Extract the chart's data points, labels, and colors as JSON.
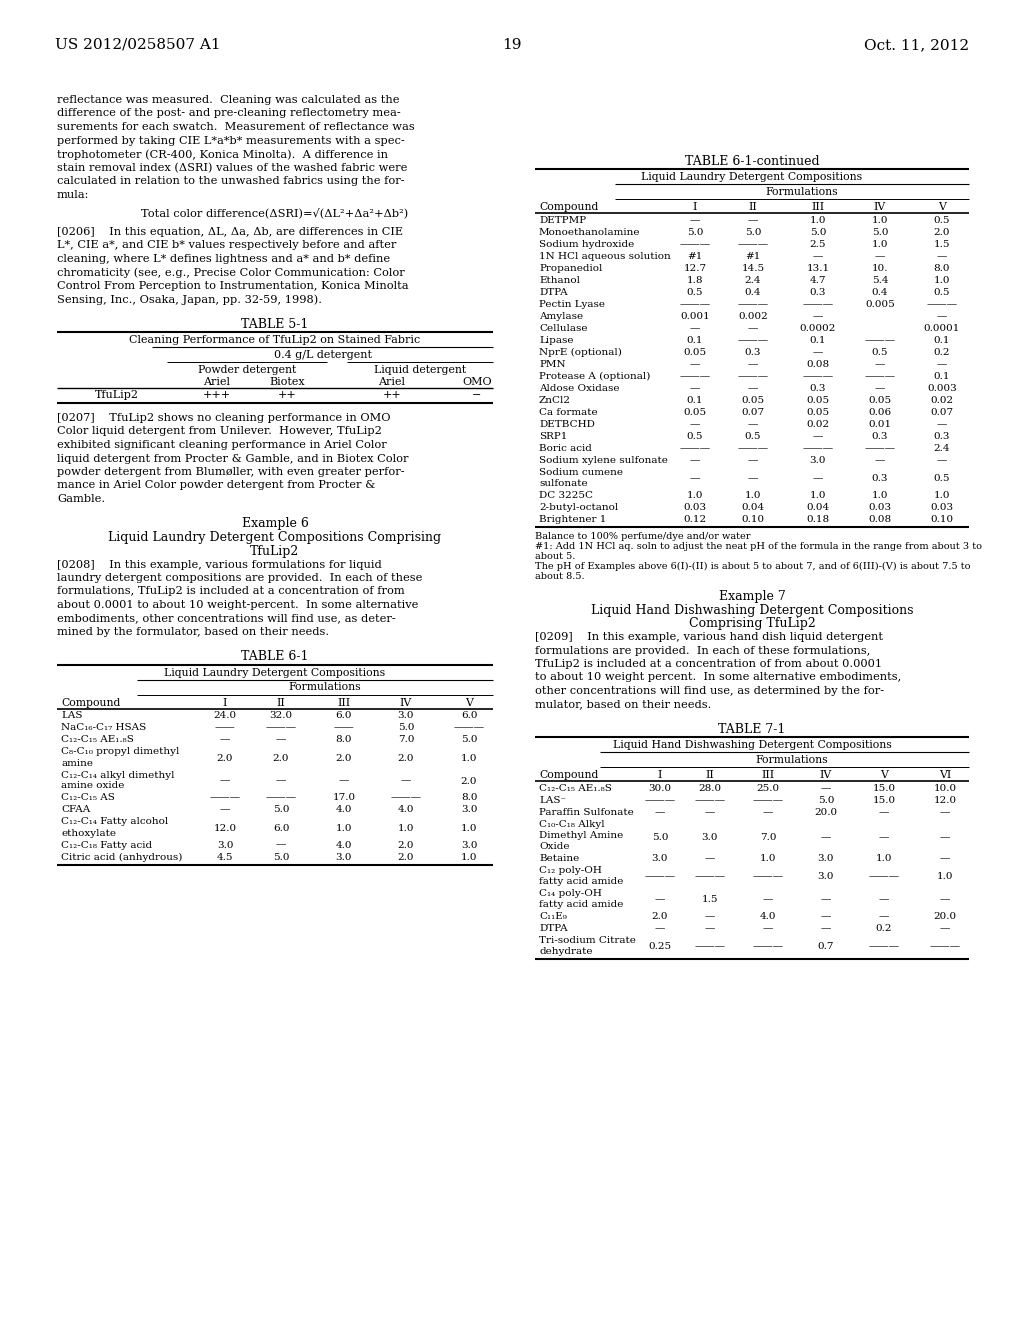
{
  "page_number": "19",
  "patent_number": "US 2012/0258507 A1",
  "patent_date": "Oct. 11, 2012",
  "background_color": "#ffffff",
  "text_color": "#000000",
  "table51_row": [
    "TfuLip2",
    "+++",
    "++",
    "++",
    "−"
  ],
  "table61_cols": [
    "Compound",
    "I",
    "II",
    "III",
    "IV",
    "V"
  ],
  "table61_rows": [
    [
      "LAS",
      "24.0",
      "32.0",
      "6.0",
      "3.0",
      "6.0"
    ],
    [
      "NaC₁₆-C₁₇ HSAS",
      "——",
      "———",
      "——",
      "5.0",
      "———"
    ],
    [
      "C₁₂-C₁₅ AE₁.₈S",
      "—",
      "—",
      "8.0",
      "7.0",
      "5.0"
    ],
    [
      "C₈-C₁₀ propyl dimethyl|amine",
      "2.0",
      "2.0",
      "2.0",
      "2.0",
      "1.0"
    ],
    [
      "C₁₂-C₁₄ alkyl dimethyl|amine oxide",
      "—",
      "—",
      "—",
      "—",
      "2.0"
    ],
    [
      "C₁₂-C₁₅ AS",
      "———",
      "———",
      "17.0",
      "———",
      "8.0"
    ],
    [
      "CFAA",
      "—",
      "5.0",
      "4.0",
      "4.0",
      "3.0"
    ],
    [
      "C₁₂-C₁₄ Fatty alcohol|ethoxylate",
      "12.0",
      "6.0",
      "1.0",
      "1.0",
      "1.0"
    ],
    [
      "C₁₂-C₁₈ Fatty acid",
      "3.0",
      "—",
      "4.0",
      "2.0",
      "3.0"
    ],
    [
      "Citric acid (anhydrous)",
      "4.5",
      "5.0",
      "3.0",
      "2.0",
      "1.0"
    ]
  ],
  "table61cont_cols": [
    "Compound",
    "I",
    "II",
    "III",
    "IV",
    "V"
  ],
  "table61cont_rows": [
    [
      "DETPMP",
      "—",
      "—",
      "1.0",
      "1.0",
      "0.5"
    ],
    [
      "Monoethanolamine",
      "5.0",
      "5.0",
      "5.0",
      "5.0",
      "2.0"
    ],
    [
      "Sodium hydroxide",
      "———",
      "———",
      "2.5",
      "1.0",
      "1.5"
    ],
    [
      "1N HCl aqueous solution",
      "#1",
      "#1",
      "—",
      "—",
      "—"
    ],
    [
      "Propanediol",
      "12.7",
      "14.5",
      "13.1",
      "10.",
      "8.0"
    ],
    [
      "Ethanol",
      "1.8",
      "2.4",
      "4.7",
      "5.4",
      "1.0"
    ],
    [
      "DTPA",
      "0.5",
      "0.4",
      "0.3",
      "0.4",
      "0.5"
    ],
    [
      "Pectin Lyase",
      "———",
      "———",
      "———",
      "0.005",
      "———"
    ],
    [
      "Amylase",
      "0.001",
      "0.002",
      "—",
      "",
      "—"
    ],
    [
      "Cellulase",
      "—",
      "—",
      "0.0002",
      "",
      "0.0001"
    ],
    [
      "Lipase",
      "0.1",
      "———",
      "0.1",
      "———",
      "0.1"
    ],
    [
      "NprE (optional)",
      "0.05",
      "0.3",
      "—",
      "0.5",
      "0.2"
    ],
    [
      "PMN",
      "—",
      "—",
      "0.08",
      "—",
      "—"
    ],
    [
      "Protease A (optional)",
      "———",
      "———",
      "———",
      "———",
      "0.1"
    ],
    [
      "Aldose Oxidase",
      "—",
      "—",
      "0.3",
      "—",
      "0.003"
    ],
    [
      "ZnCl2",
      "0.1",
      "0.05",
      "0.05",
      "0.05",
      "0.02"
    ],
    [
      "Ca formate",
      "0.05",
      "0.07",
      "0.05",
      "0.06",
      "0.07"
    ],
    [
      "DETBCHD",
      "—",
      "—",
      "0.02",
      "0.01",
      "—"
    ],
    [
      "SRP1",
      "0.5",
      "0.5",
      "—",
      "0.3",
      "0.3"
    ],
    [
      "Boric acid",
      "———",
      "———",
      "———",
      "———",
      "2.4"
    ],
    [
      "Sodium xylene sulfonate",
      "—",
      "—",
      "3.0",
      "—",
      "—"
    ],
    [
      "Sodium cumene|sulfonate",
      "—",
      "—",
      "—",
      "0.3",
      "0.5"
    ],
    [
      "DC 3225C",
      "1.0",
      "1.0",
      "1.0",
      "1.0",
      "1.0"
    ],
    [
      "2-butyl-octanol",
      "0.03",
      "0.04",
      "0.04",
      "0.03",
      "0.03"
    ],
    [
      "Brightener 1",
      "0.12",
      "0.10",
      "0.18",
      "0.08",
      "0.10"
    ]
  ],
  "table61cont_footnotes": [
    "Balance to 100% perfume/dye and/or water",
    "#1: Add 1N HCl aq. soln to adjust the neat pH of the formula in the range from about 3 to",
    "about 5.",
    "The pH of Examples above 6(I)-(II) is about 5 to about 7, and of 6(III)-(V) is about 7.5 to",
    "about 8.5."
  ],
  "table71_cols": [
    "Compound",
    "I",
    "II",
    "III",
    "IV",
    "V",
    "VI"
  ],
  "table71_rows": [
    [
      "C₁₂-C₁₅ AE₁.₈S",
      "30.0",
      "28.0",
      "25.0",
      "—",
      "15.0",
      "10.0"
    ],
    [
      "LAS⁻",
      "———",
      "———",
      "———",
      "5.0",
      "15.0",
      "12.0"
    ],
    [
      "Paraffin Sulfonate",
      "—",
      "—",
      "—",
      "20.0",
      "—",
      "—"
    ],
    [
      "C₁₀-C₁₈ Alkyl|Dimethyl Amine|Oxide",
      "5.0",
      "3.0",
      "7.0",
      "—",
      "—",
      "—"
    ],
    [
      "Betaine",
      "3.0",
      "—",
      "1.0",
      "3.0",
      "1.0",
      "—"
    ],
    [
      "C₁₂ poly-OH|fatty acid amide",
      "———",
      "———",
      "———",
      "3.0",
      "———",
      "1.0"
    ],
    [
      "C₁₄ poly-OH|fatty acid amide",
      "—",
      "1.5",
      "—",
      "—",
      "—",
      "—"
    ],
    [
      "C₁₁E₉",
      "2.0",
      "—",
      "4.0",
      "—",
      "—",
      "20.0"
    ],
    [
      "DTPA",
      "—",
      "—",
      "—",
      "—",
      "0.2",
      "—"
    ],
    [
      "Tri-sodium Citrate|dehydrate",
      "0.25",
      "———",
      "———",
      "0.7",
      "———",
      "———"
    ]
  ]
}
